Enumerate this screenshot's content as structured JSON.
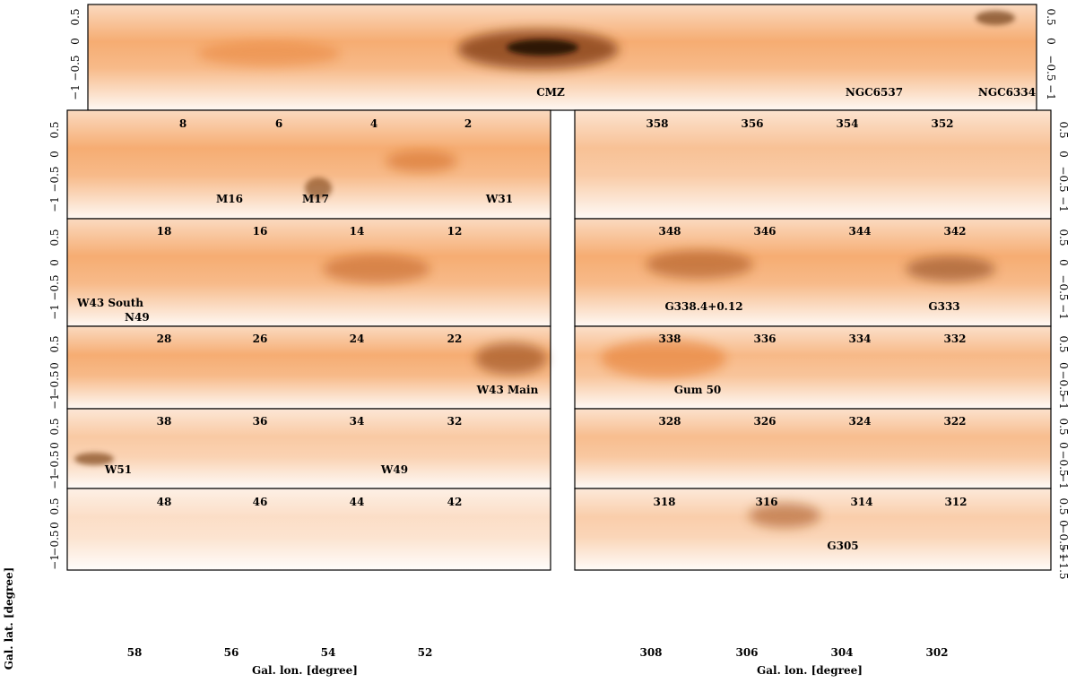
{
  "figure": {
    "xlabel": "Gal. lon. [degree]",
    "ylabel": "Gal. lat. [degree]",
    "colormap": "white-to-orange-to-black",
    "accent_color": "#f07a1c",
    "dark_color": "#1a0d05"
  },
  "top_panel": {
    "lat_ticks": [
      "0.5",
      "0",
      "−0.5",
      "−1"
    ],
    "labels": [
      "CMZ",
      "NGC6537",
      "NGC6334"
    ]
  },
  "left_panels": [
    {
      "lon_ticks": [
        "8",
        "6",
        "4",
        "2"
      ],
      "lat_ticks": [
        "0.5",
        "0",
        "−0.5",
        "−1"
      ],
      "labels": [
        "M16",
        "M17",
        "W31"
      ]
    },
    {
      "lon_ticks": [
        "18",
        "16",
        "14",
        "12"
      ],
      "lat_ticks": [
        "0.5",
        "0",
        "−0.5",
        "−1"
      ],
      "labels": [
        "W43 South",
        "N49"
      ]
    },
    {
      "lon_ticks": [
        "28",
        "26",
        "24",
        "22"
      ],
      "lat_ticks": [
        "0.5",
        "0",
        "−0.5",
        "−1"
      ],
      "labels": [
        "W43 Main"
      ]
    },
    {
      "lon_ticks": [
        "38",
        "36",
        "34",
        "32"
      ],
      "lat_ticks": [
        "0.5",
        "0",
        "−0.5",
        "−1"
      ],
      "labels": [
        "W51",
        "W49"
      ]
    },
    {
      "lon_ticks": [
        "48",
        "46",
        "44",
        "42"
      ],
      "lat_ticks": [
        "0.5",
        "0",
        "−0.5",
        "−1"
      ],
      "bottom_ticks": [
        "58",
        "56",
        "54",
        "52"
      ],
      "labels": []
    }
  ],
  "right_panels": [
    {
      "lon_ticks": [
        "358",
        "356",
        "354",
        "352"
      ],
      "lat_ticks": [
        "0.5",
        "0",
        "−0.5",
        "−1"
      ],
      "labels": []
    },
    {
      "lon_ticks": [
        "348",
        "346",
        "344",
        "342"
      ],
      "lat_ticks": [
        "0.5",
        "0",
        "−0.5",
        "−1"
      ],
      "labels": [
        "G338.4+0.12",
        "G333"
      ]
    },
    {
      "lon_ticks": [
        "338",
        "336",
        "334",
        "332"
      ],
      "lat_ticks": [
        "0.5",
        "0",
        "−0.5",
        "−1"
      ],
      "labels": [
        "Gum 50"
      ]
    },
    {
      "lon_ticks": [
        "328",
        "326",
        "324",
        "322"
      ],
      "lat_ticks": [
        "0.5",
        "0",
        "−0.5",
        "−1"
      ],
      "labels": []
    },
    {
      "lon_ticks": [
        "318",
        "316",
        "314",
        "312"
      ],
      "lat_ticks": [
        "0.5",
        "0",
        "−0.5",
        "−1",
        "−1.5"
      ],
      "bottom_ticks": [
        "308",
        "306",
        "304",
        "302"
      ],
      "labels": [
        "G305"
      ]
    }
  ]
}
